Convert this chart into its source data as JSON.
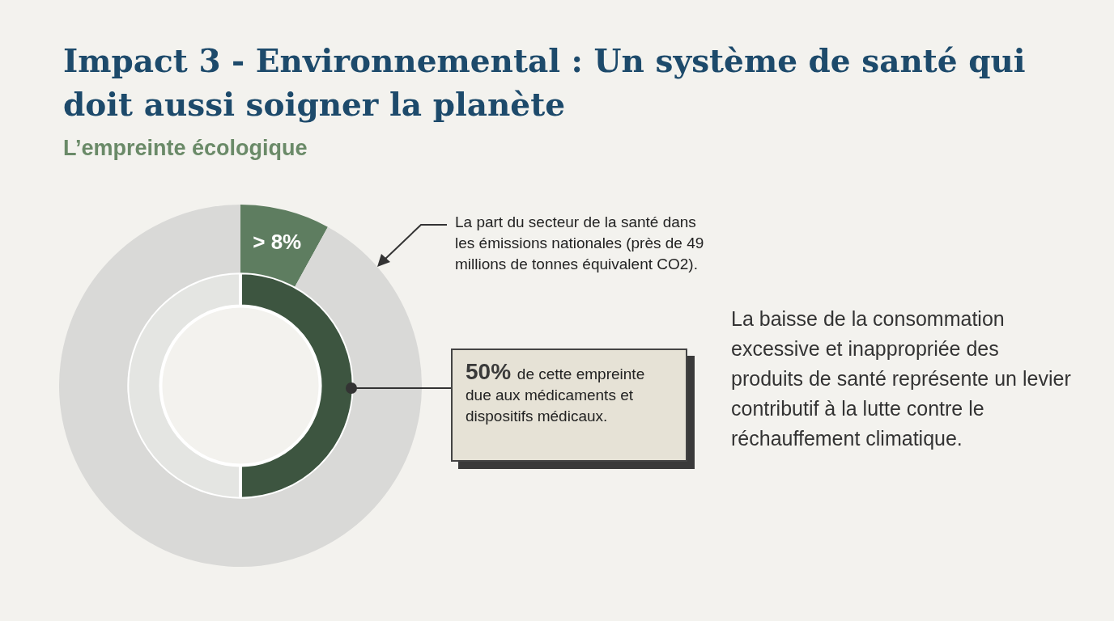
{
  "chart_data": {
    "type": "donut",
    "title": "Impact 3 - Environnemental : Un système de santé qui doit aussi soigner la planète",
    "subtitle": "L’empreinte écologique",
    "categories": [
      null,
      null
    ],
    "series": [
      {
        "values": [
          8,
          92
        ],
        "colors": [
          "#5e7d60",
          "#d9d9d7"
        ],
        "value_labels": [
          "> 8%",
          null
        ]
      },
      {
        "values": [
          50,
          50
        ],
        "colors": [
          "#3d5540",
          "#e4e5e2"
        ],
        "value_labels": [
          "50%",
          null
        ]
      }
    ],
    "annotations": [
      "La part du secteur de la santé dans les émissions nationales (près de 49 millions de tonnes équivalent CO2).",
      "de cette empreinte due aux médicaments et dispositifs médicaux.",
      "La baisse de la consommation excessive et inappropriée des produits de santé représente un levier contributif à la lutte contre le réchauffement climatique."
    ]
  }
}
